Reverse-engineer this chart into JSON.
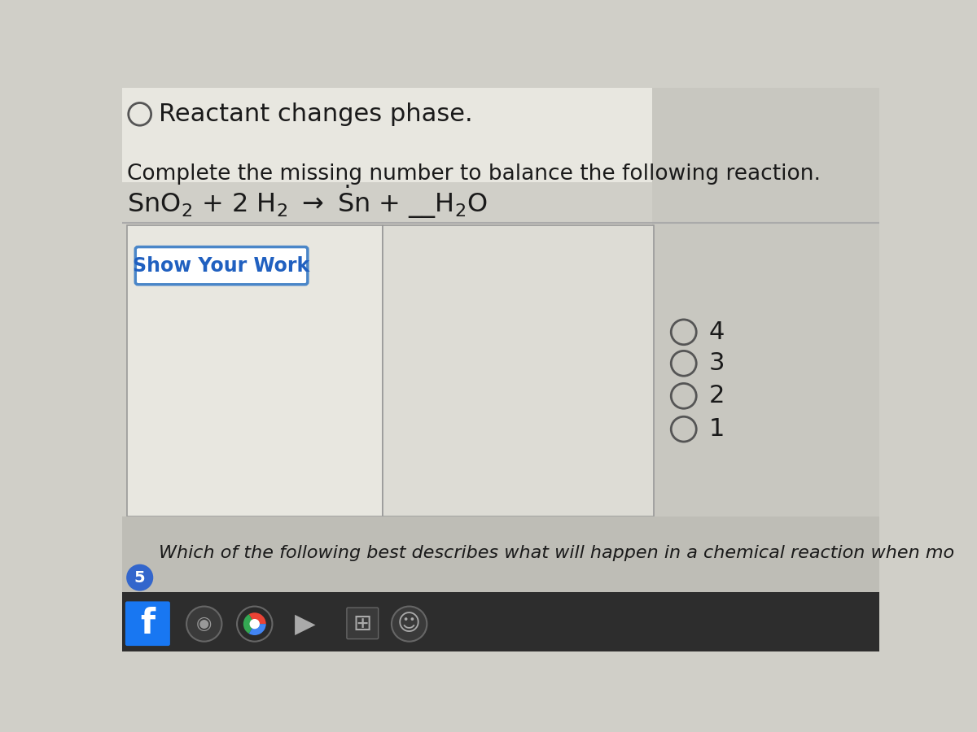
{
  "bg_color": "#d0cfc8",
  "bg_top_color": "#e8e7e0",
  "title_option_text": "Reactant changes phase.",
  "question_label": "Complete the missing number to balance the following reaction.",
  "reaction_text": "SnO₂ + 2 H₂ → Sn + __H₂O",
  "show_work_text": "Show Your Work",
  "options": [
    "4",
    "3",
    "2",
    "1"
  ],
  "bottom_text": "Which of the following best describes what will happen in a chemical reaction when mo",
  "question_num_bottom": "5",
  "taskbar_color": "#2d2d2d",
  "white_area_color": "#e8e7e0",
  "white_area_color2": "#dddcd5",
  "box_border_color": "#4a86c8",
  "option_circle_color": "#555555",
  "title_circle_color": "#555555",
  "text_color_dark": "#1a1a1a",
  "text_color_blue": "#2060c0",
  "right_panel_color": "#c8c7c0"
}
